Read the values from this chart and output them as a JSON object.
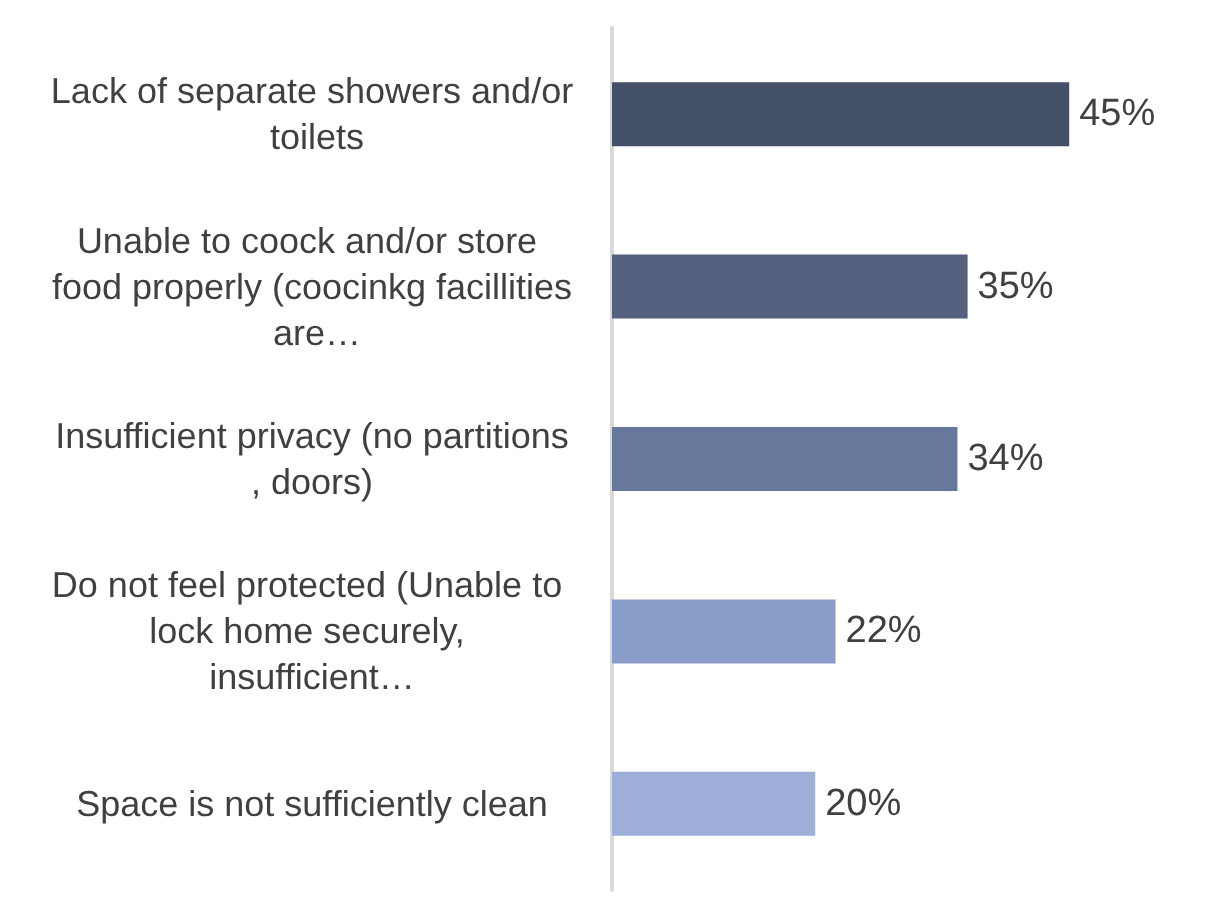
{
  "chart_data": {
    "type": "bar",
    "orientation": "horizontal",
    "categories": [
      "Lack of separate showers and/or toilets",
      "Unable to coock and/or store food properly (coocinkg facillities are…",
      "Insufficient privacy (no partitions, doors)",
      "Do not feel protected (Unable to lock home securely, insufficient…",
      "Space is not sufficiently clean"
    ],
    "values": [
      45,
      35,
      34,
      22,
      20
    ],
    "colors": [
      "#435068",
      "#53617f",
      "#66789b",
      "#8a9cc8",
      "#9daed9"
    ],
    "value_labels": [
      "45%",
      "35%",
      "34%",
      "22%",
      "20%"
    ],
    "tick_labels": "y",
    "grid": false
  }
}
